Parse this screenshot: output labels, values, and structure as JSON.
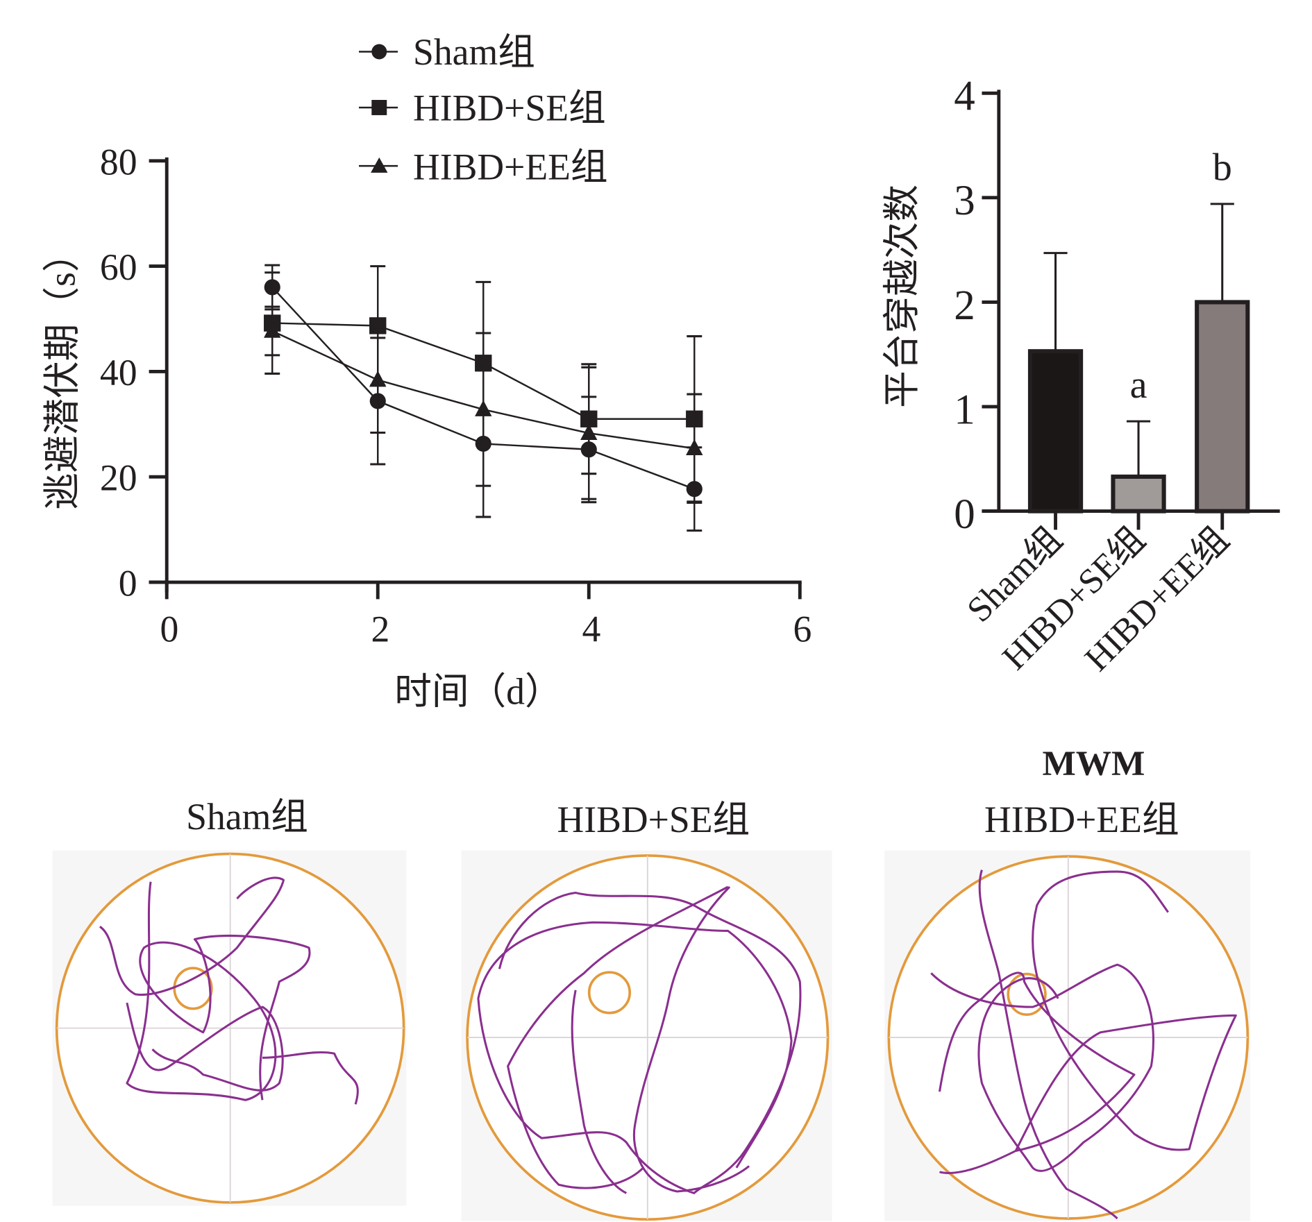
{
  "chart_data": [
    {
      "type": "line",
      "title": "",
      "xlabel": "时间（d）",
      "ylabel": "逃避潜伏期（s）",
      "xlim": [
        0,
        6
      ],
      "ylim": [
        0,
        80
      ],
      "xticks": [
        "0",
        "2",
        "4",
        "6"
      ],
      "yticks": [
        "0",
        "20",
        "40",
        "60",
        "80"
      ],
      "legend_position": "top",
      "x": [
        1,
        2,
        3,
        4,
        5
      ],
      "series": [
        {
          "name": "Sham组",
          "marker": "circle",
          "values": [
            56.0,
            34.4,
            26.3,
            25.2,
            17.7
          ],
          "error": [
            4.2,
            12.0,
            13.9,
            10.0,
            7.9
          ]
        },
        {
          "name": "HIBD+SE组",
          "marker": "square",
          "values": [
            49.2,
            48.7,
            41.6,
            31.0,
            31.0
          ],
          "error": [
            9.6,
            11.3,
            15.4,
            10.4,
            15.7
          ]
        },
        {
          "name": "HIBD+EE组",
          "marker": "triangle",
          "values": [
            47.7,
            38.4,
            32.8,
            28.3,
            25.4
          ],
          "error": [
            4.6,
            10.0,
            14.5,
            12.5,
            10.3
          ]
        }
      ]
    },
    {
      "type": "bar",
      "title": "MWM",
      "ylabel": "平台穿越次数",
      "ylim": [
        0,
        4
      ],
      "yticks": [
        "0",
        "1",
        "2",
        "3",
        "4"
      ],
      "categories": [
        "Sham组",
        "HIBD+SE组",
        "HIBD+EE组"
      ],
      "values": [
        1.53,
        0.33,
        2.0
      ],
      "error": [
        0.94,
        0.53,
        0.94
      ],
      "annotations": [
        "",
        "a",
        "b"
      ],
      "colors": [
        "#1a1716",
        "#a09a99",
        "#857b7a"
      ]
    }
  ],
  "trajectories": {
    "titles": [
      "Sham组",
      "HIBD+SE组",
      "HIBD+EE组"
    ],
    "pool_color": "#e39a3b",
    "path_color": "#8a2f8f"
  }
}
